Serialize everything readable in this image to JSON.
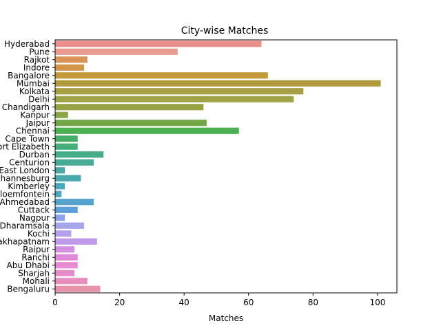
{
  "chart_data": {
    "type": "bar",
    "orientation": "horizontal",
    "title": "City-wise Matches",
    "xlabel": "Matches",
    "ylabel": "",
    "xlim": [
      0,
      106
    ],
    "xticks": [
      0,
      20,
      40,
      60,
      80,
      100
    ],
    "grid": false,
    "categories": [
      "Hyderabad",
      "Pune",
      "Rajkot",
      "Indore",
      "Bangalore",
      "Mumbai",
      "Kolkata",
      "Delhi",
      "Chandigarh",
      "Kanpur",
      "Jaipur",
      "Chennai",
      "Cape Town",
      "Port Elizabeth",
      "Durban",
      "Centurion",
      "East London",
      "Johannesburg",
      "Kimberley",
      "Bloemfontein",
      "Ahmedabad",
      "Cuttack",
      "Nagpur",
      "Dharamsala",
      "Kochi",
      "Visakhapatnam",
      "Raipur",
      "Ranchi",
      "Abu Dhabi",
      "Sharjah",
      "Mohali",
      "Bengaluru"
    ],
    "values": [
      64,
      38,
      10,
      9,
      66,
      101,
      77,
      74,
      46,
      4,
      47,
      57,
      7,
      7,
      15,
      12,
      3,
      8,
      3,
      2,
      12,
      7,
      3,
      9,
      5,
      13,
      6,
      7,
      7,
      6,
      10,
      14
    ],
    "colors": [
      "#ea8d8d",
      "#e99b90",
      "#da9359",
      "#d4964a",
      "#c59a3b",
      "#b29a3e",
      "#a69f43",
      "#a0a448",
      "#96a344",
      "#8aa646",
      "#72a647",
      "#4caf50",
      "#45ad68",
      "#46ad7c",
      "#47ac8a",
      "#48ab98",
      "#49aaa5",
      "#4aa9ae",
      "#4ba8b9",
      "#4fa7c3",
      "#55a3cd",
      "#5e9fda",
      "#8ba2e8",
      "#a6a4ea",
      "#b49fea",
      "#c09aea",
      "#d58fe2",
      "#e088da",
      "#e68ad2",
      "#e68ccb",
      "#e88ebf",
      "#e893ae"
    ]
  }
}
